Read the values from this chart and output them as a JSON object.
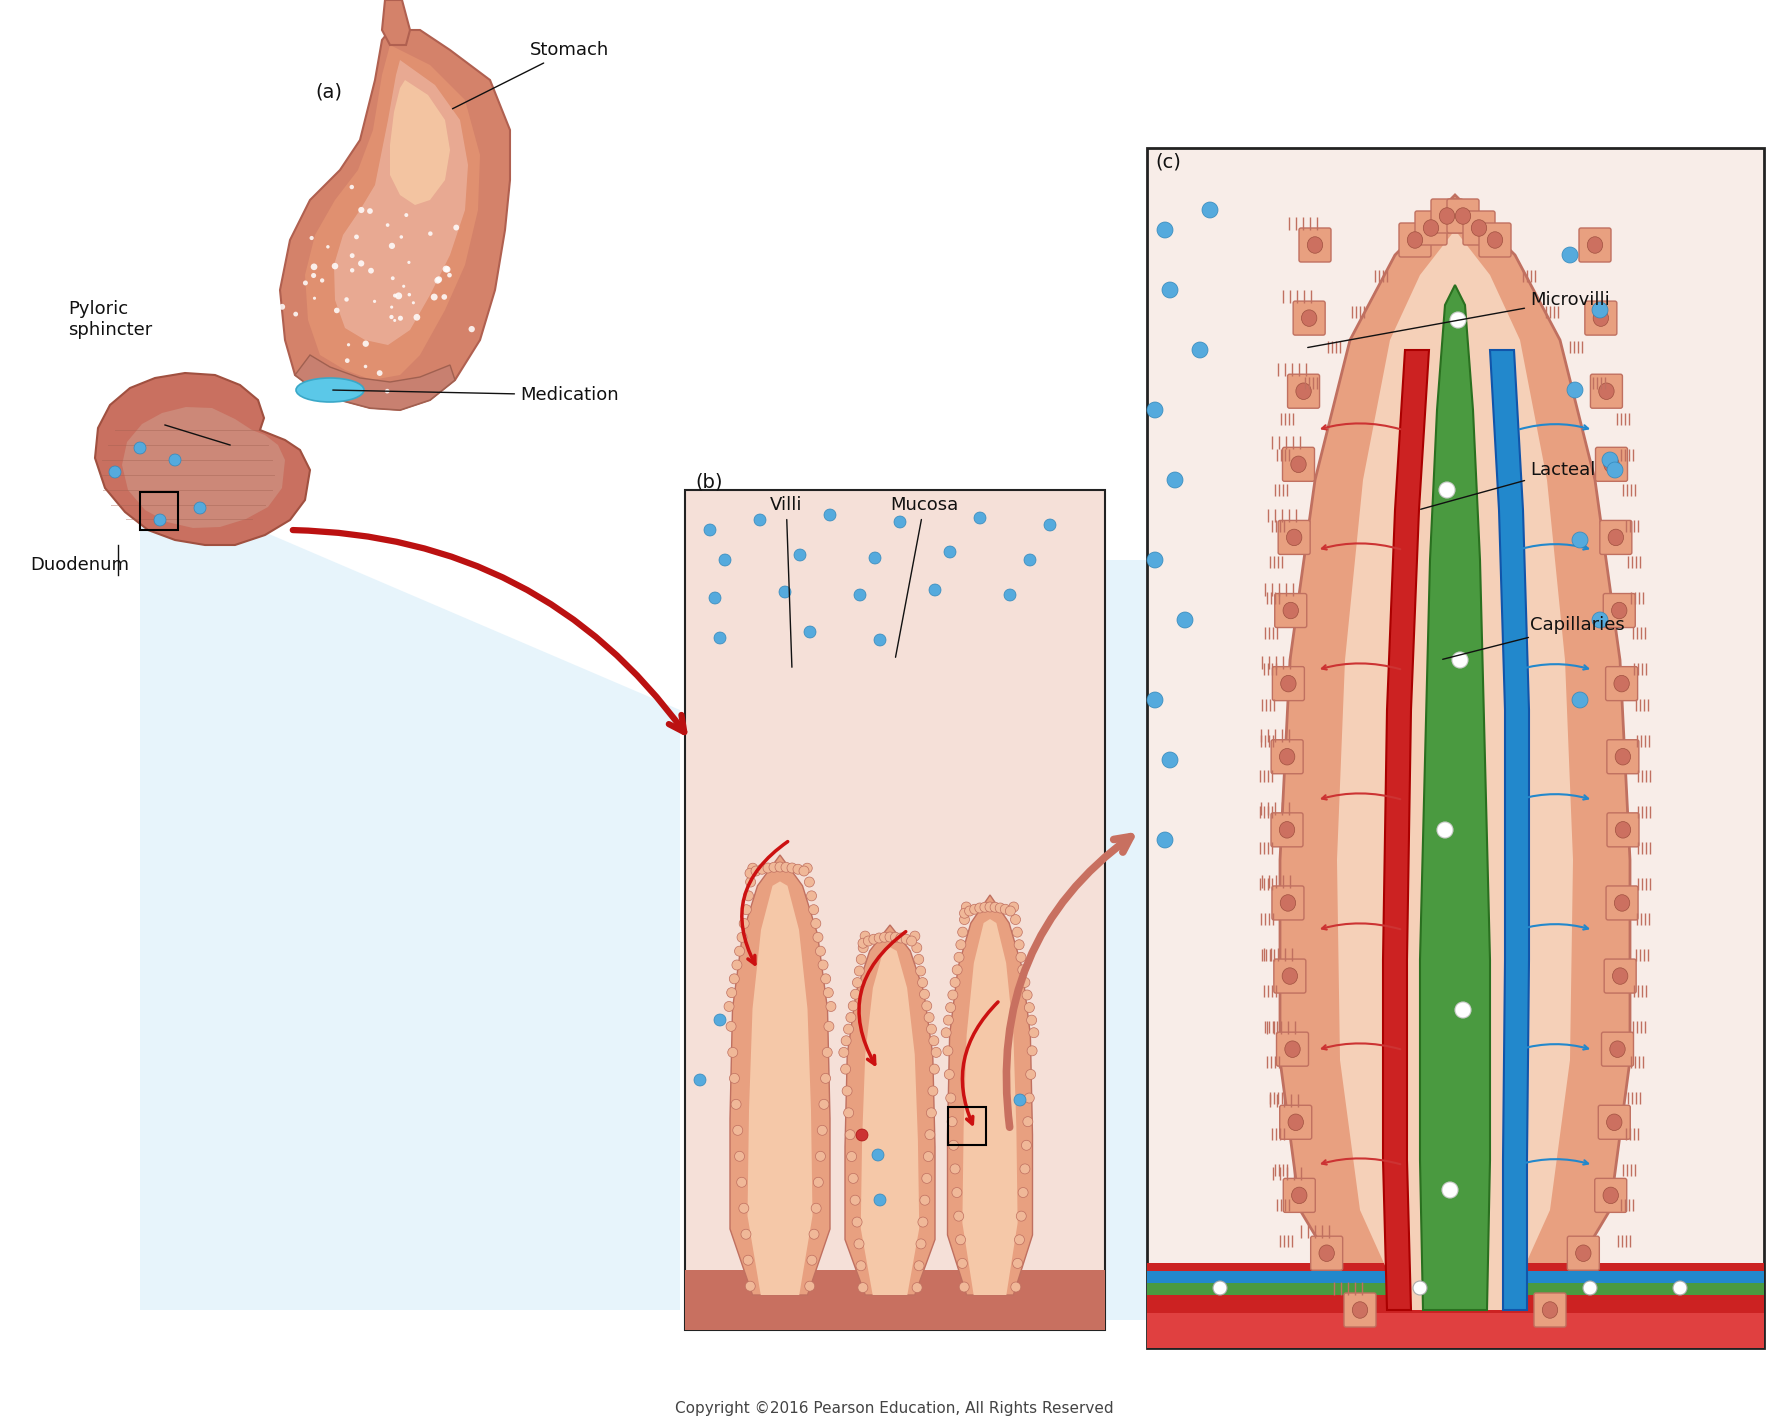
{
  "background_color": "#ffffff",
  "copyright_text": "Copyright ©2016 Pearson Education, All Rights Reserved",
  "copyright_fontsize": 11,
  "label_a": "(a)",
  "label_b": "(b)",
  "label_c": "(c)",
  "stomach_label": "Stomach",
  "medication_label": "Medication",
  "pyloric_label": "Pyloric\nsphincter",
  "duodenum_label": "Duodenum",
  "villi_label": "Villi",
  "mucosa_label": "Mucosa",
  "microvilli_label": "Microvilli",
  "lacteal_label": "Lacteal",
  "capillaries_label": "Capillaries",
  "stomach_outer": "#d4826a",
  "stomach_mid": "#e09070",
  "stomach_inner": "#f0c080",
  "stomach_highlight": "#f5d8a0",
  "duodenum_outer": "#c97060",
  "duodenum_inner": "#e09080",
  "villus_outer": "#e8a080",
  "villus_inner": "#f5c8a8",
  "villus_fringe": "#f0b898",
  "cell_fill": "#e8a080",
  "cell_border": "#c07060",
  "nucleus_fill": "#cc7060",
  "lacteal_color": "#4a9a40",
  "artery_color": "#cc2222",
  "vein_color": "#2288cc",
  "capillary_color_r": "#cc4444",
  "capillary_color_b": "#4499cc",
  "blue_dot": "#55aadd",
  "white_dot": "#ffffff",
  "panel_c_bg": "#f8ede8",
  "panel_b_bg": "#f5e0d8",
  "light_blue": "#d0eaf8",
  "floor_color": "#c87060",
  "box_color": "#222222",
  "pill_color": "#5bc8e8",
  "label_fs": 13,
  "label_color": "#111111"
}
